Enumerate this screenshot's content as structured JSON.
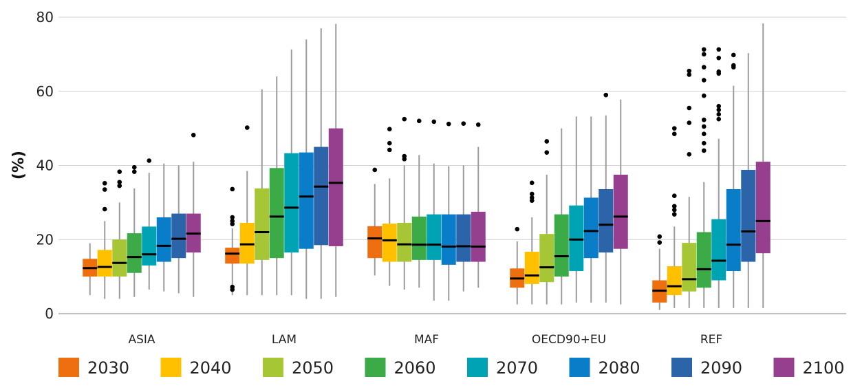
{
  "chart_data": {
    "type": "boxplot",
    "ylabel": "(%)",
    "ylim": [
      0,
      80
    ],
    "yticks": [
      "0",
      "20",
      "40",
      "60",
      "80"
    ],
    "ytick_values": [
      0,
      20,
      40,
      60,
      80
    ],
    "grid": true,
    "legend_position": "bottom",
    "categories": [
      "ASIA",
      "LAM",
      "MAF",
      "OECD90+EU",
      "REF"
    ],
    "series": [
      {
        "name": "2030",
        "color": "#EE6F0F",
        "boxes": [
          {
            "min": 5,
            "q1": 10,
            "median": 12.3,
            "q3": 14.8,
            "max": 19,
            "outliers": []
          },
          {
            "min": 5,
            "q1": 13.5,
            "median": 16.2,
            "q3": 17.8,
            "max": 23,
            "outliers": [
              24.2,
              25,
              26,
              33.6,
              6.5,
              7.2
            ]
          },
          {
            "min": 10.3,
            "q1": 15,
            "median": 20.3,
            "q3": 23.6,
            "max": 35,
            "outliers": [
              38.8
            ]
          },
          {
            "min": 2.5,
            "q1": 7,
            "median": 9.5,
            "q3": 12.2,
            "max": 19.5,
            "outliers": [
              22.8
            ]
          },
          {
            "min": 1,
            "q1": 3,
            "median": 6.2,
            "q3": 9,
            "max": 17.5,
            "outliers": [
              19.2,
              20.8
            ]
          }
        ]
      },
      {
        "name": "2040",
        "color": "#FFC000",
        "boxes": [
          {
            "min": 4,
            "q1": 10,
            "median": 12.6,
            "q3": 17.2,
            "max": 25,
            "outliers": [
              28.2,
              33.5,
              35.2
            ]
          },
          {
            "min": 5,
            "q1": 13.5,
            "median": 18.7,
            "q3": 24.5,
            "max": 38.5,
            "outliers": [
              50.2
            ]
          },
          {
            "min": 7.5,
            "q1": 14,
            "median": 19.8,
            "q3": 24.3,
            "max": 36.5,
            "outliers": [
              44.2,
              46,
              49.8
            ]
          },
          {
            "min": 2.5,
            "q1": 8,
            "median": 10.3,
            "q3": 16.7,
            "max": 26,
            "outliers": [
              30.5,
              31.3,
              32.3,
              35.3
            ]
          },
          {
            "min": 1.5,
            "q1": 5,
            "median": 7.4,
            "q3": 12.8,
            "max": 23.5,
            "outliers": [
              26.8,
              28,
              29,
              31.8,
              48.5,
              50
            ]
          }
        ]
      },
      {
        "name": "2050",
        "color": "#A7C635",
        "boxes": [
          {
            "min": 4,
            "q1": 10,
            "median": 13.7,
            "q3": 20,
            "max": 30,
            "outliers": [
              34.5,
              35.5,
              38.3
            ]
          },
          {
            "min": 5,
            "q1": 14.5,
            "median": 22,
            "q3": 33.8,
            "max": 60.5,
            "outliers": []
          },
          {
            "min": 6.5,
            "q1": 14,
            "median": 18.7,
            "q3": 24.5,
            "max": 40,
            "outliers": [
              41.7,
              42.5,
              52.5
            ]
          },
          {
            "min": 2.5,
            "q1": 8.5,
            "median": 12.5,
            "q3": 21.5,
            "max": 37.5,
            "outliers": [
              43.5,
              46.5
            ]
          },
          {
            "min": 1.5,
            "q1": 6,
            "median": 9.3,
            "q3": 19.1,
            "max": 31.5,
            "outliers": [
              43,
              51.5,
              55.5,
              64.5,
              65.5
            ]
          }
        ]
      },
      {
        "name": "2060",
        "color": "#3DAA48",
        "boxes": [
          {
            "min": 4.5,
            "q1": 11,
            "median": 15.3,
            "q3": 21.7,
            "max": 33.8,
            "outliers": [
              38.3,
              39.5
            ]
          },
          {
            "min": 5,
            "q1": 15,
            "median": 26.2,
            "q3": 39.3,
            "max": 64,
            "outliers": []
          },
          {
            "min": 7,
            "q1": 14.5,
            "median": 18.6,
            "q3": 26.2,
            "max": 42.8,
            "outliers": [
              52
            ]
          },
          {
            "min": 2.5,
            "q1": 10,
            "median": 15.5,
            "q3": 26.8,
            "max": 50,
            "outliers": []
          },
          {
            "min": 1.5,
            "q1": 7,
            "median": 12,
            "q3": 22,
            "max": 35.5,
            "outliers": [
              44,
              46,
              48.5,
              50.5,
              52.3,
              58.8,
              63,
              66.5,
              70,
              71.3
            ]
          }
        ]
      },
      {
        "name": "2070",
        "color": "#00A3B4",
        "boxes": [
          {
            "min": 6.5,
            "q1": 13,
            "median": 16,
            "q3": 23.5,
            "max": 38,
            "outliers": [
              41.3
            ]
          },
          {
            "min": 5,
            "q1": 16.5,
            "median": 28.6,
            "q3": 43.3,
            "max": 71.3,
            "outliers": []
          },
          {
            "min": 3.5,
            "q1": 14.5,
            "median": 18.6,
            "q3": 26.8,
            "max": 40.5,
            "outliers": [
              51.8
            ]
          },
          {
            "min": 3,
            "q1": 11.5,
            "median": 20,
            "q3": 29.2,
            "max": 53.2,
            "outliers": []
          },
          {
            "min": 1.5,
            "q1": 9,
            "median": 14.3,
            "q3": 25.5,
            "max": 47.2,
            "outliers": [
              52.5,
              53.8,
              55,
              56,
              64.8,
              65.3,
              69,
              71.3
            ]
          }
        ]
      },
      {
        "name": "2080",
        "color": "#0A7DC8",
        "boxes": [
          {
            "min": 6,
            "q1": 14,
            "median": 18.3,
            "q3": 26,
            "max": 40.5,
            "outliers": []
          },
          {
            "min": 4,
            "q1": 17.5,
            "median": 31.6,
            "q3": 43.5,
            "max": 74,
            "outliers": []
          },
          {
            "min": 3.5,
            "q1": 13.2,
            "median": 18.1,
            "q3": 26.8,
            "max": 39.8,
            "outliers": [
              51.2
            ]
          },
          {
            "min": 3,
            "q1": 15,
            "median": 22.3,
            "q3": 31.3,
            "max": 53.2,
            "outliers": []
          },
          {
            "min": 1.5,
            "q1": 11.5,
            "median": 18.6,
            "q3": 33.6,
            "max": 61.5,
            "outliers": [
              66.5,
              67,
              69.8
            ]
          }
        ]
      },
      {
        "name": "2090",
        "color": "#2C64AA",
        "boxes": [
          {
            "min": 5.5,
            "q1": 15,
            "median": 20.2,
            "q3": 27,
            "max": 40,
            "outliers": []
          },
          {
            "min": 4,
            "q1": 18.5,
            "median": 34.3,
            "q3": 45,
            "max": 77,
            "outliers": []
          },
          {
            "min": 6,
            "q1": 14,
            "median": 18.2,
            "q3": 26.8,
            "max": 40,
            "outliers": [
              51.3
            ]
          },
          {
            "min": 3,
            "q1": 16.5,
            "median": 24,
            "q3": 33.6,
            "max": 53.5,
            "outliers": [
              59
            ]
          },
          {
            "min": 1.5,
            "q1": 14,
            "median": 22.2,
            "q3": 38.8,
            "max": 70.3,
            "outliers": []
          }
        ]
      },
      {
        "name": "2100",
        "color": "#963F8E",
        "boxes": [
          {
            "min": 4.5,
            "q1": 16.5,
            "median": 21.6,
            "q3": 27,
            "max": 41,
            "outliers": [
              48.2
            ]
          },
          {
            "min": 4.5,
            "q1": 18.2,
            "median": 35.3,
            "q3": 50,
            "max": 78.2,
            "outliers": []
          },
          {
            "min": 7,
            "q1": 14,
            "median": 18.1,
            "q3": 27.5,
            "max": 45,
            "outliers": [
              51
            ]
          },
          {
            "min": 2.5,
            "q1": 17.5,
            "median": 26.2,
            "q3": 37.5,
            "max": 57.8,
            "outliers": []
          },
          {
            "min": 1.5,
            "q1": 16.3,
            "median": 25,
            "q3": 41,
            "max": 78.3,
            "outliers": []
          }
        ]
      }
    ]
  }
}
